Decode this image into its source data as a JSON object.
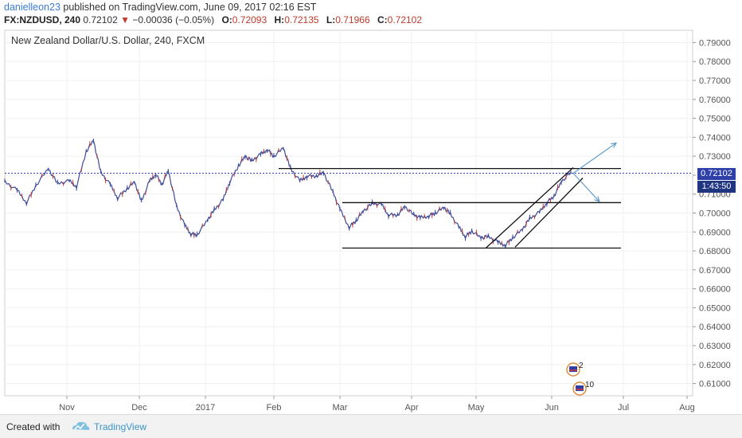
{
  "header": {
    "author": "danielleon23",
    "published": "published on TradingView.com, June 09, 2017 02:16 EST",
    "symbol": "FX:NZDUSD, 240",
    "last": "0.72102",
    "change": "−0.00036 (−0.05%)",
    "open_label": "O:",
    "open": "0.72093",
    "high_label": "H:",
    "high": "0.72135",
    "low_label": "L:",
    "low": "0.71966",
    "close_label": "C:",
    "close": "0.72102"
  },
  "footer": {
    "created_with": "Created with",
    "brand": "TradingView"
  },
  "chart_data": {
    "type": "line",
    "title": "New Zealand Dollar/U.S. Dollar, 240, FXCM",
    "xlabel": "",
    "ylabel": "",
    "ylim": [
      0.6035,
      0.7965
    ],
    "y_ticks": [
      "0.79000",
      "0.78000",
      "0.77000",
      "0.76000",
      "0.75000",
      "0.74000",
      "0.73000",
      "0.72000",
      "0.71000",
      "0.70000",
      "0.69000",
      "0.68000",
      "0.67000",
      "0.66000",
      "0.65000",
      "0.64000",
      "0.63000",
      "0.62000",
      "0.61000"
    ],
    "x_ticks": [
      "Nov",
      "Dec",
      "2017",
      "Feb",
      "Mar",
      "Apr",
      "May",
      "Jun",
      "Jul",
      "Aug"
    ],
    "current_price": "0.72102",
    "countdown": "1:43:50",
    "series": [
      {
        "x": [
          "Oct 12",
          "Oct 16",
          "Oct 19",
          "Oct 22",
          "Oct 26",
          "Oct 29",
          "Nov 2",
          "Nov 5",
          "Nov 9",
          "Nov 12",
          "Nov 15",
          "Nov 19",
          "Nov 22",
          "Nov 26",
          "Nov 29",
          "Dec 2",
          "Dec 6",
          "Dec 9",
          "Dec 12",
          "Dec 15",
          "Dec 19",
          "Dec 23",
          "Dec 26",
          "Dec 29",
          "Jan 2",
          "Jan 5",
          "Jan 9",
          "Jan 12",
          "Jan 16",
          "Jan 19",
          "Jan 22",
          "Jan 26",
          "Jan 29",
          "Feb 1",
          "Feb 5",
          "Feb 8",
          "Feb 12",
          "Feb 15",
          "Feb 19",
          "Feb 22",
          "Feb 26",
          "Mar 1",
          "Mar 5",
          "Mar 8",
          "Mar 11",
          "Mar 15",
          "Mar 19",
          "Mar 22",
          "Mar 26",
          "Mar 29",
          "Apr 2",
          "Apr 5",
          "Apr 9",
          "Apr 12",
          "Apr 16",
          "Apr 19",
          "Apr 23",
          "Apr 26",
          "Apr 29",
          "May 3",
          "May 6",
          "May 10",
          "May 13",
          "May 16",
          "May 20",
          "May 23",
          "May 27",
          "May 30",
          "Jun 2",
          "Jun 5",
          "Jun 9"
        ],
        "values": [
          0.7165,
          0.712,
          0.7055,
          0.7145,
          0.7235,
          0.7155,
          0.717,
          0.714,
          0.7325,
          0.7385,
          0.7215,
          0.715,
          0.708,
          0.713,
          0.7165,
          0.706,
          0.717,
          0.7205,
          0.715,
          0.7225,
          0.7035,
          0.6935,
          0.689,
          0.6885,
          0.6965,
          0.7015,
          0.707,
          0.7165,
          0.725,
          0.73,
          0.7275,
          0.731,
          0.7335,
          0.73,
          0.7345,
          0.7235,
          0.717,
          0.7195,
          0.7195,
          0.7215,
          0.711,
          0.702,
          0.6925,
          0.696,
          0.701,
          0.705,
          0.7045,
          0.699,
          0.699,
          0.7035,
          0.699,
          0.6975,
          0.6985,
          0.7,
          0.703,
          0.6995,
          0.6925,
          0.6875,
          0.6905,
          0.687,
          0.6875,
          0.6845,
          0.683,
          0.687,
          0.6915,
          0.697,
          0.7005,
          0.7055,
          0.709,
          0.7165,
          0.7215
        ]
      }
    ],
    "lines": {
      "horizontal": [
        {
          "x1": "Feb 3",
          "x2": "Jun 30",
          "y": 0.7235
        },
        {
          "x1": "Mar 2",
          "x2": "Jun 30",
          "y": 0.7055
        },
        {
          "x1": "Mar 2",
          "x2": "Jun 30",
          "y": 0.6815
        }
      ],
      "channel": [
        {
          "x1": "May 5",
          "y1": 0.6815,
          "x2": "Jun 10",
          "y2": 0.724
        },
        {
          "x1": "May 17",
          "y1": 0.682,
          "x2": "Jun 14",
          "y2": 0.7185
        }
      ],
      "arrows": [
        {
          "x1": "Jun 10",
          "y1": 0.721,
          "x2": "Jun 28",
          "y2": 0.737
        },
        {
          "x1": "Jun 10",
          "y1": 0.721,
          "x2": "Jun 21",
          "y2": 0.706
        }
      ]
    },
    "event_badges": [
      "2",
      "10"
    ],
    "colors": {
      "series": "#3d4a9c",
      "candle_down": "#c0392b",
      "price_line": "#2f3fa8",
      "price_tag": "#2f3fa8",
      "countdown_tag": "#1f3580",
      "trendlines": "#111111",
      "arrows": "#4a90c8",
      "grid": "#f0f0f0"
    },
    "grid": true,
    "legend": "none"
  }
}
